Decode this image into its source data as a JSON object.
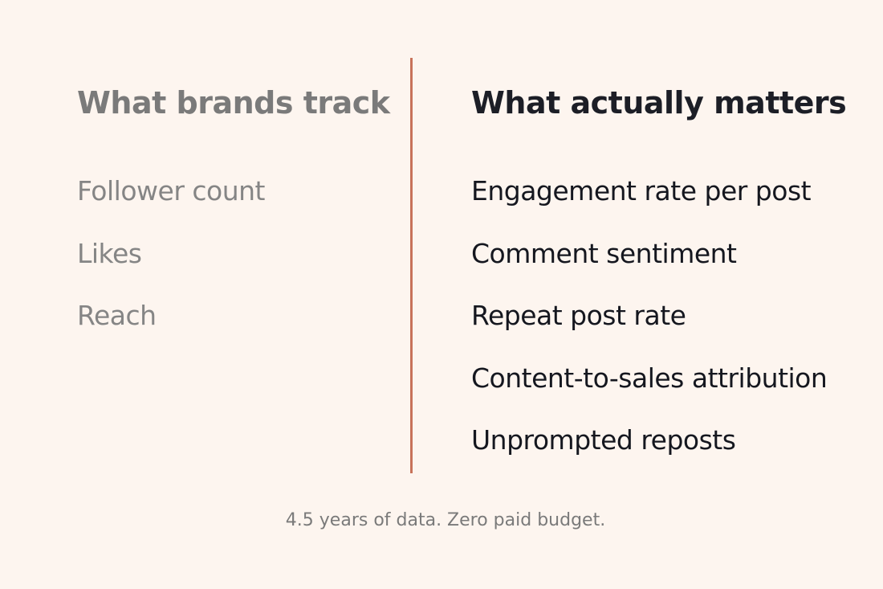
{
  "left": {
    "title": "What brands track",
    "items": [
      "Follower count",
      "Likes",
      "Reach"
    ]
  },
  "right": {
    "title": "What actually matters",
    "items": [
      "Engagement rate per post",
      "Comment sentiment",
      "Repeat post rate",
      "Content-to-sales attribution",
      "Unprompted reposts"
    ]
  },
  "footer": "4.5 years of data. Zero paid budget."
}
